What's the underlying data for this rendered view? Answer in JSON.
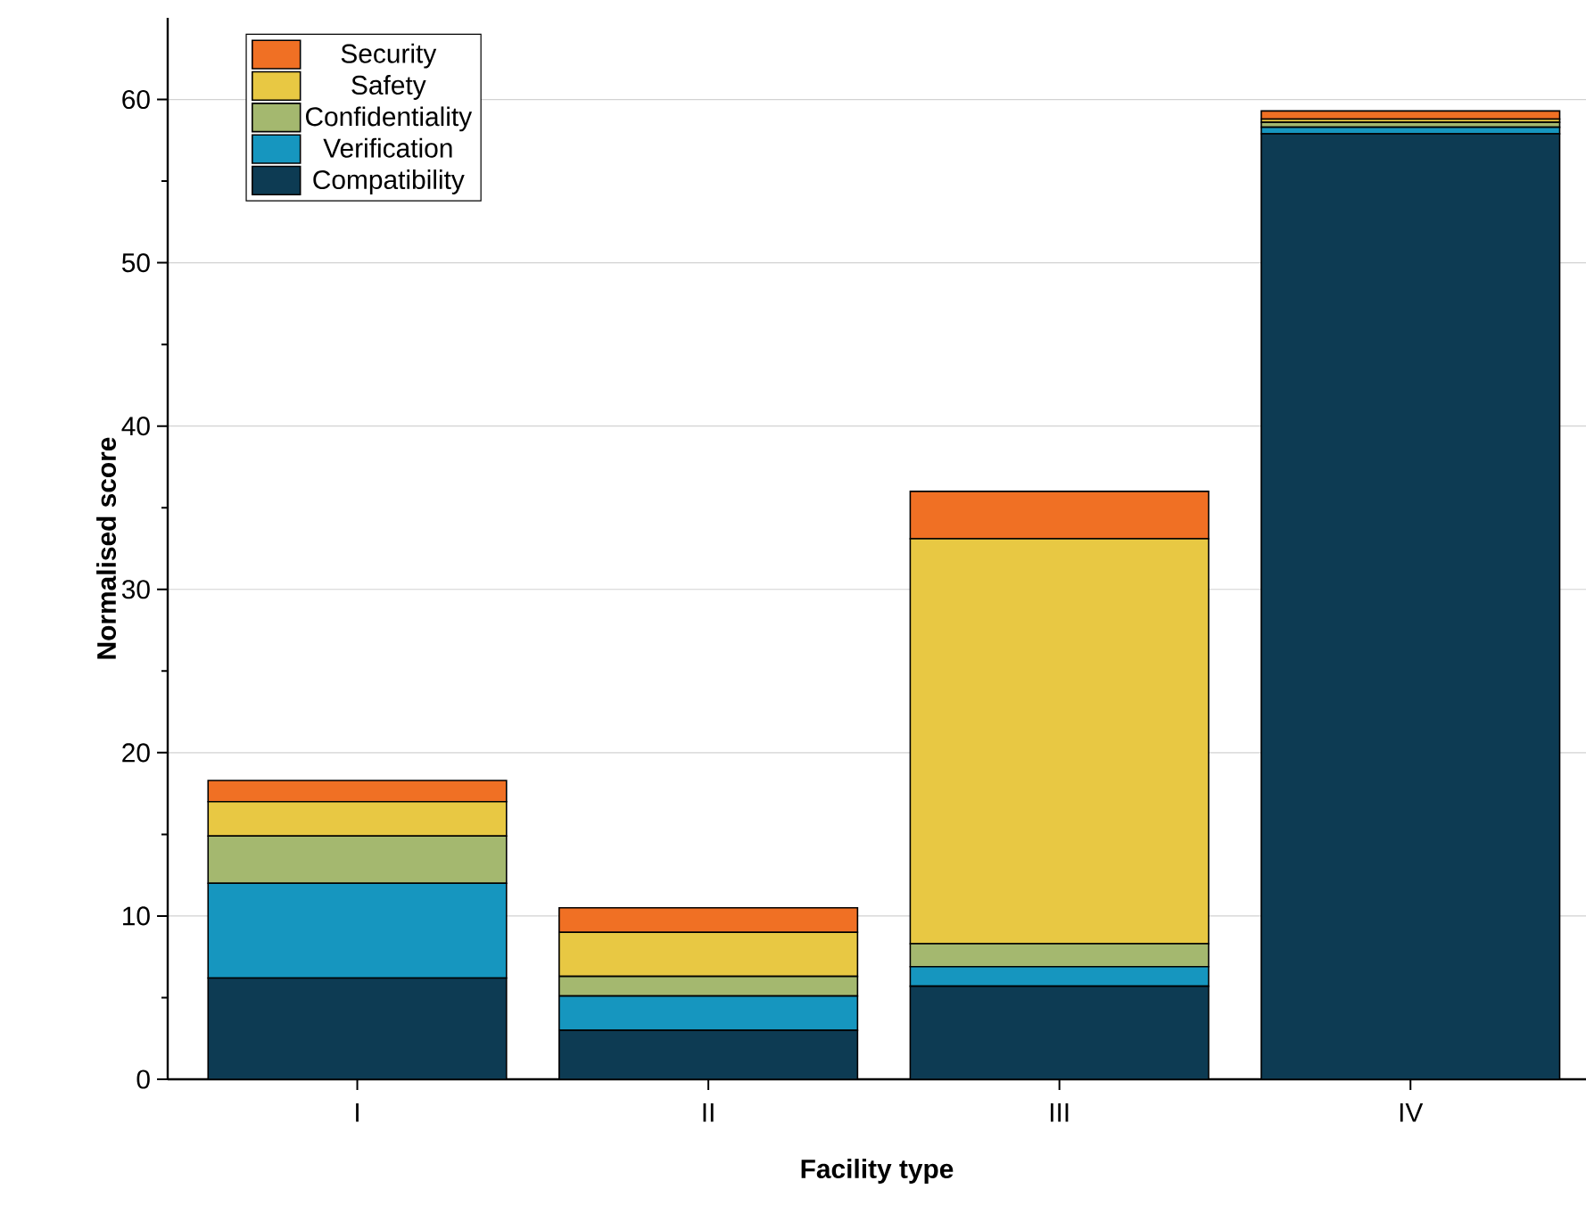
{
  "chart_data": {
    "type": "bar",
    "stacked": true,
    "xlabel": "Facility type",
    "ylabel": "Normalised score",
    "categories": [
      "I",
      "II",
      "III",
      "IV"
    ],
    "series": [
      {
        "name": "Compatibility",
        "color": "#0d3b53",
        "values": [
          6.2,
          3.0,
          5.7,
          57.9
        ]
      },
      {
        "name": "Verification",
        "color": "#1696bf",
        "values": [
          5.8,
          2.1,
          1.2,
          0.4
        ]
      },
      {
        "name": "Confidentiality",
        "color": "#a4b86f",
        "values": [
          2.9,
          1.2,
          1.4,
          0.3
        ]
      },
      {
        "name": "Safety",
        "color": "#e8c843",
        "values": [
          2.1,
          2.7,
          24.8,
          0.2
        ]
      },
      {
        "name": "Security",
        "color": "#f07024",
        "values": [
          1.3,
          1.5,
          2.9,
          0.5
        ]
      }
    ],
    "ylim": [
      0,
      65
    ],
    "yticks": [
      0,
      10,
      20,
      30,
      40,
      50,
      60
    ],
    "grid": "y",
    "legend": "top left"
  }
}
